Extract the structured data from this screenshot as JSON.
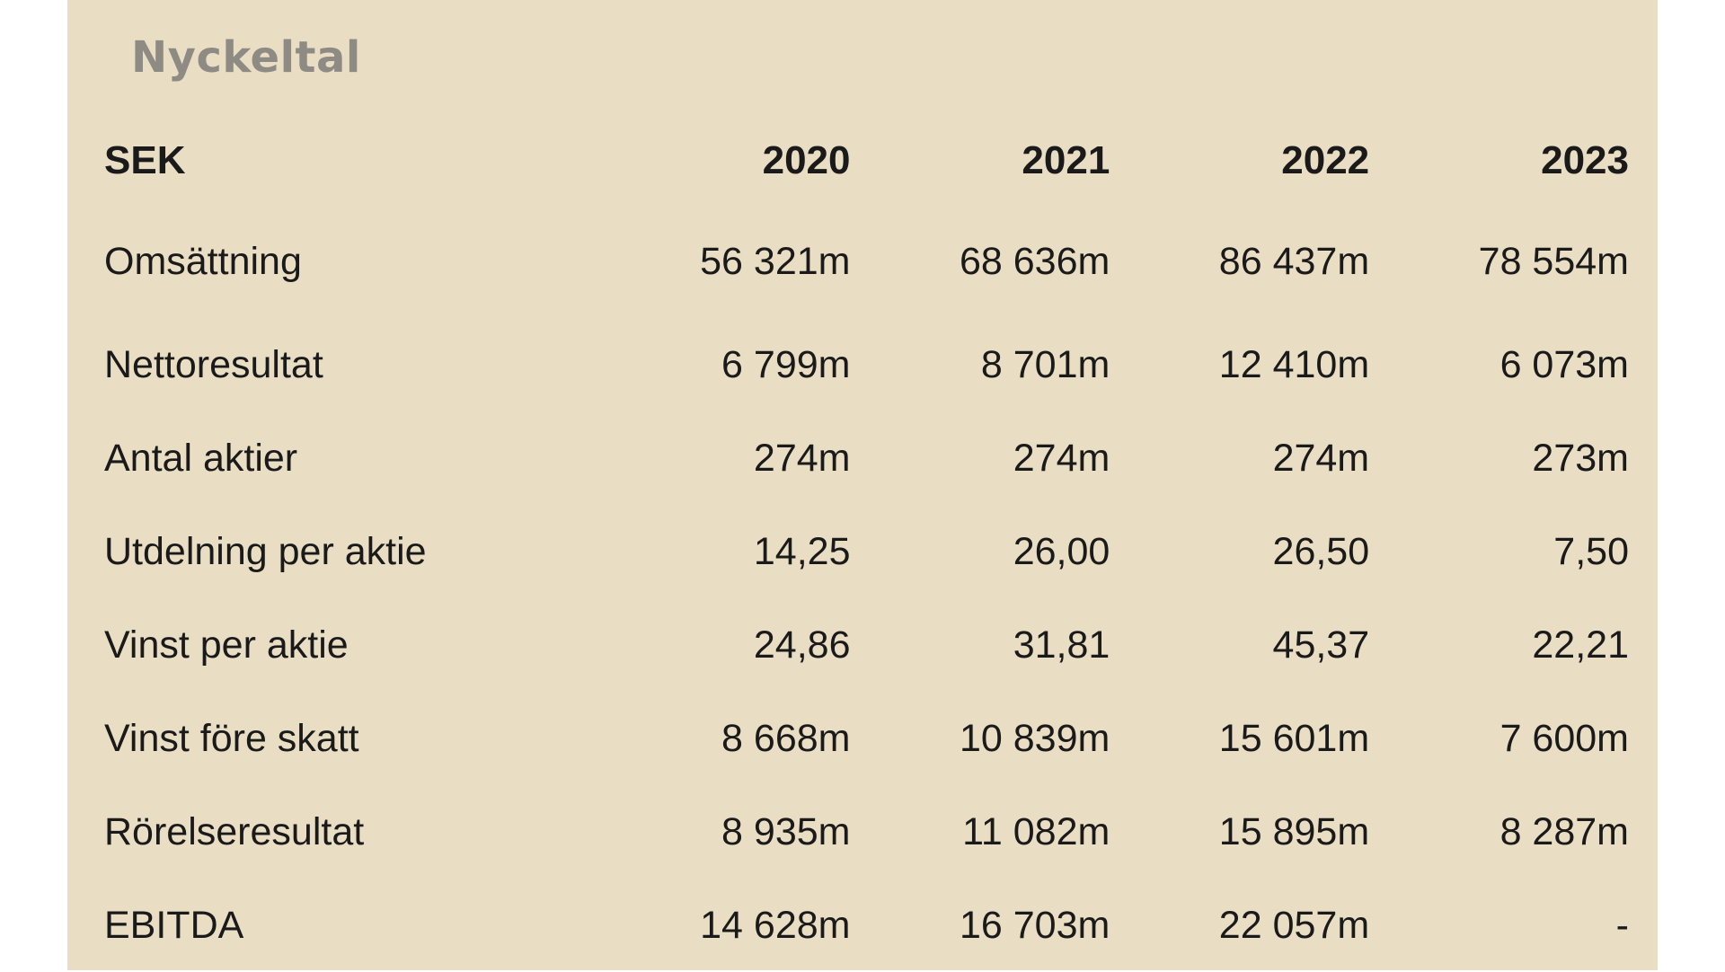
{
  "title": "Nyckeltal",
  "table": {
    "currency": "SEK",
    "years": [
      "2020",
      "2021",
      "2022",
      "2023"
    ],
    "rows": [
      {
        "label": "Omsättning",
        "values": [
          "56 321m",
          "68 636m",
          "86 437m",
          "78 554m"
        ]
      },
      {
        "label": "Nettoresultat",
        "values": [
          "6 799m",
          "8 701m",
          "12 410m",
          "6 073m"
        ]
      },
      {
        "label": "Antal aktier",
        "values": [
          "274m",
          "274m",
          "274m",
          "273m"
        ]
      },
      {
        "label": "Utdelning per aktie",
        "values": [
          "14,25",
          "26,00",
          "26,50",
          "7,50"
        ]
      },
      {
        "label": "Vinst per aktie",
        "values": [
          "24,86",
          "31,81",
          "45,37",
          "22,21"
        ]
      },
      {
        "label": "Vinst före skatt",
        "values": [
          "8 668m",
          "10 839m",
          "15 601m",
          "7 600m"
        ]
      },
      {
        "label": "Rörelseresultat",
        "values": [
          "8 935m",
          "11 082m",
          "15 895m",
          "8 287m"
        ]
      },
      {
        "label": "EBITDA",
        "values": [
          "14 628m",
          "16 703m",
          "22 057m",
          "-"
        ]
      }
    ]
  }
}
